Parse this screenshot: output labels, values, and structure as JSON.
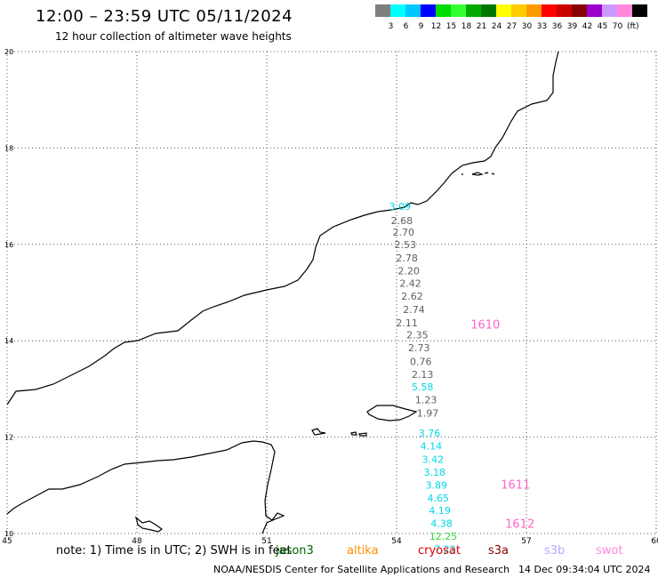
{
  "header": {
    "title": "12:00 – 23:59 UTC 05/11/2024",
    "subtitle": "12 hour collection of altimeter wave heights"
  },
  "legend": {
    "unit": "(ft)",
    "bins": [
      {
        "label": "",
        "color": "#7f7f7f"
      },
      {
        "label": "3",
        "color": "#00ffff"
      },
      {
        "label": "6",
        "color": "#00c8ff"
      },
      {
        "label": "9",
        "color": "#0000ff"
      },
      {
        "label": "12",
        "color": "#00dd00"
      },
      {
        "label": "15",
        "color": "#33ff33"
      },
      {
        "label": "18",
        "color": "#00aa00"
      },
      {
        "label": "21",
        "color": "#007700"
      },
      {
        "label": "24",
        "color": "#ffff00"
      },
      {
        "label": "27",
        "color": "#ffcc00"
      },
      {
        "label": "30",
        "color": "#ff9900"
      },
      {
        "label": "33",
        "color": "#ff0000"
      },
      {
        "label": "36",
        "color": "#cc0000"
      },
      {
        "label": "39",
        "color": "#880000"
      },
      {
        "label": "42",
        "color": "#9900cc"
      },
      {
        "label": "45",
        "color": "#cc99ff"
      },
      {
        "label": "70",
        "color": "#ff88dd"
      },
      {
        "label": "",
        "color": "#000000"
      }
    ]
  },
  "map": {
    "lon_range": [
      45,
      60
    ],
    "lat_range": [
      10,
      20
    ],
    "lon_ticks": [
      "45",
      "48",
      "51",
      "54",
      "57",
      "60"
    ],
    "lat_ticks": [
      "20",
      "18",
      "16",
      "14",
      "12",
      "10"
    ],
    "track_labels": [
      {
        "text": "1610",
        "lon": 56.05,
        "lat": 14.25,
        "color": "#ff66cc"
      },
      {
        "text": "1611",
        "lon": 56.75,
        "lat": 10.93,
        "color": "#ff66cc"
      },
      {
        "text": "1612",
        "lon": 56.85,
        "lat": 10.12,
        "color": "#ff66cc"
      }
    ],
    "observations": [
      {
        "value": "3.09",
        "lon": 54.08,
        "lat": 16.72,
        "color": "#00d8e8"
      },
      {
        "value": "2.68",
        "lon": 54.12,
        "lat": 16.42,
        "color": "#606060"
      },
      {
        "value": "2.70",
        "lon": 54.16,
        "lat": 16.18,
        "color": "#606060"
      },
      {
        "value": "2.53",
        "lon": 54.2,
        "lat": 15.92,
        "color": "#606060"
      },
      {
        "value": "2.78",
        "lon": 54.24,
        "lat": 15.65,
        "color": "#606060"
      },
      {
        "value": "2.20",
        "lon": 54.28,
        "lat": 15.38,
        "color": "#606060"
      },
      {
        "value": "2.42",
        "lon": 54.32,
        "lat": 15.12,
        "color": "#606060"
      },
      {
        "value": "2.62",
        "lon": 54.36,
        "lat": 14.85,
        "color": "#606060"
      },
      {
        "value": "2.74",
        "lon": 54.4,
        "lat": 14.58,
        "color": "#606060"
      },
      {
        "value": "2.11",
        "lon": 54.24,
        "lat": 14.3,
        "color": "#606060"
      },
      {
        "value": "2.35",
        "lon": 54.48,
        "lat": 14.05,
        "color": "#606060"
      },
      {
        "value": "2.73",
        "lon": 54.52,
        "lat": 13.78,
        "color": "#606060"
      },
      {
        "value": "0.76",
        "lon": 54.56,
        "lat": 13.5,
        "color": "#606060"
      },
      {
        "value": "2.13",
        "lon": 54.6,
        "lat": 13.23,
        "color": "#606060"
      },
      {
        "value": "5.58",
        "lon": 54.6,
        "lat": 12.97,
        "color": "#00d8e8"
      },
      {
        "value": "1.23",
        "lon": 54.68,
        "lat": 12.7,
        "color": "#606060"
      },
      {
        "value": "1.97",
        "lon": 54.72,
        "lat": 12.43,
        "color": "#606060"
      },
      {
        "value": "3.76",
        "lon": 54.76,
        "lat": 12.01,
        "color": "#00d8e8"
      },
      {
        "value": "4.14",
        "lon": 54.8,
        "lat": 11.74,
        "color": "#00d8e8"
      },
      {
        "value": "3.42",
        "lon": 54.84,
        "lat": 11.47,
        "color": "#00d8e8"
      },
      {
        "value": "3.18",
        "lon": 54.88,
        "lat": 11.2,
        "color": "#00d8e8"
      },
      {
        "value": "3.89",
        "lon": 54.92,
        "lat": 10.93,
        "color": "#00d8e8"
      },
      {
        "value": "4.65",
        "lon": 54.96,
        "lat": 10.66,
        "color": "#00d8e8"
      },
      {
        "value": "4.19",
        "lon": 55.0,
        "lat": 10.41,
        "color": "#00d8e8"
      },
      {
        "value": "4.38",
        "lon": 55.04,
        "lat": 10.14,
        "color": "#00d8e8"
      },
      {
        "value": "12.25",
        "lon": 55.08,
        "lat": 9.87,
        "color": "#33dd33"
      },
      {
        "value": "7.23",
        "lon": 55.12,
        "lat": 9.6,
        "color": "#00d8e8"
      }
    ]
  },
  "notes": {
    "note_text": "note:  1) Time is in UTC; 2) SWH is in feet",
    "satellites": [
      {
        "name": "jason3",
        "color": "#006600"
      },
      {
        "name": "altika",
        "color": "#ff8c00"
      },
      {
        "name": "cryosat",
        "color": "#dd0000"
      },
      {
        "name": "s3a",
        "color": "#880000"
      },
      {
        "name": "s3b",
        "color": "#b8a8ff"
      },
      {
        "name": "swot",
        "color": "#ff88dd"
      }
    ]
  },
  "footer": {
    "org": "NOAA/NESDIS Center for Satellite Applications and Research",
    "generated": "14 Dec 09:34:04 UTC 2024"
  }
}
